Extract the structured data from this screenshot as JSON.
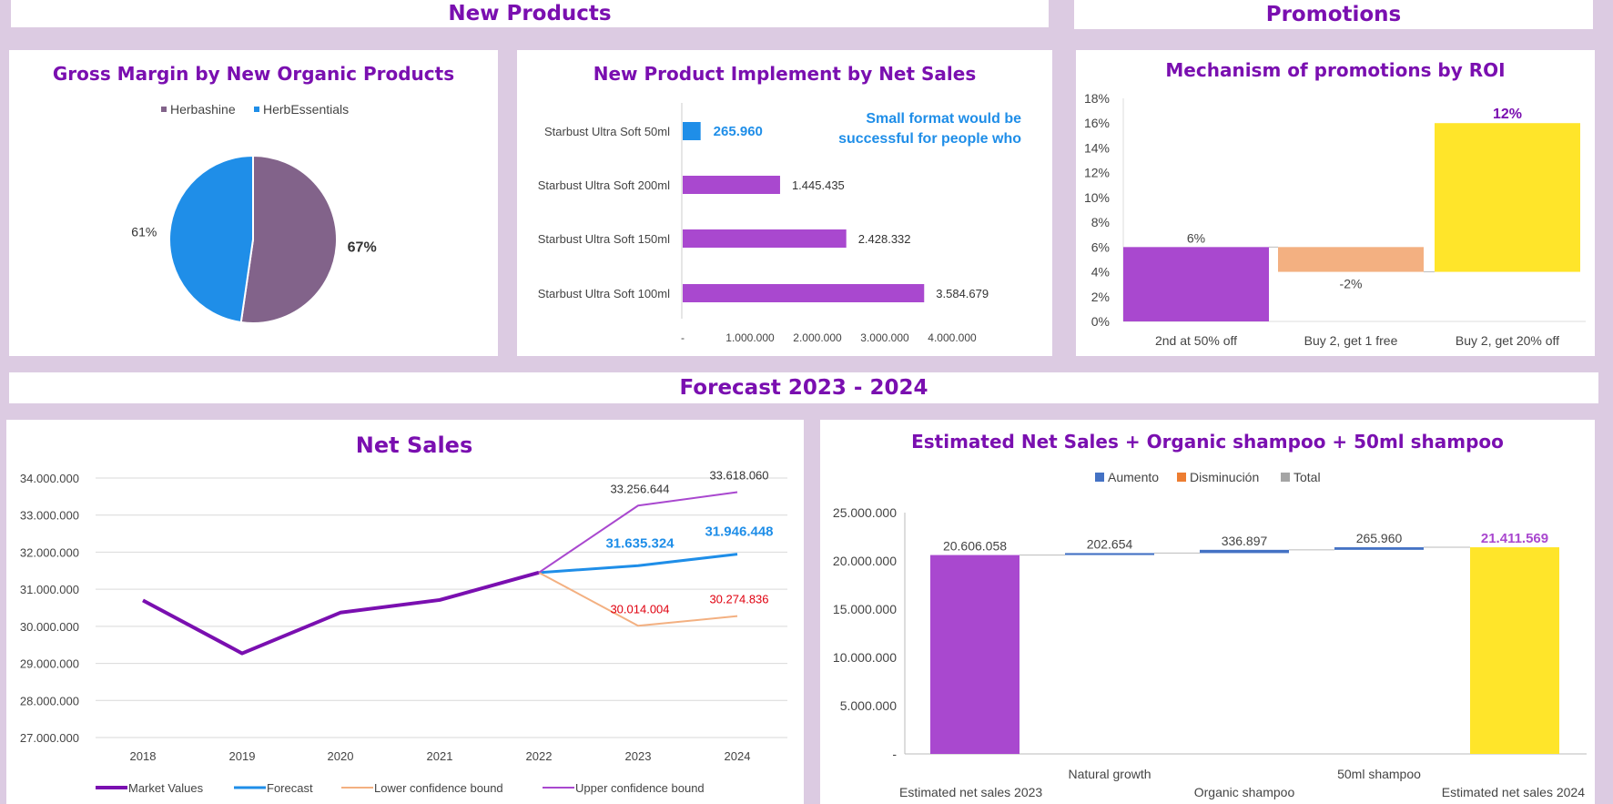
{
  "headers": {
    "new_products": "New Products",
    "promotions": "Promotions",
    "forecast": "Forecast 2023 - 2024"
  },
  "colors": {
    "purple": "#a948cf",
    "dark_purple": "#7a0fb0",
    "blue": "#1f8ee8",
    "brown": "#82638a",
    "salmon": "#f3b081",
    "yellow": "#ffe52a",
    "red": "#e0000f"
  },
  "chart_data": [
    {
      "id": "gross-margin",
      "type": "pie",
      "title": "Gross Margin by New Organic Products",
      "legend": [
        "Herbashine",
        "HerbEssentials"
      ],
      "legend_placement": "top",
      "slices": [
        {
          "name": "Herbashine",
          "label": "67%",
          "value": 52.3,
          "color": "#82638a"
        },
        {
          "name": "HerbEssentials",
          "label": "61%",
          "value": 47.7,
          "color": "#1f8ee8"
        }
      ]
    },
    {
      "id": "new-product-implement",
      "type": "bar",
      "orientation": "horizontal",
      "title": "New Product Implement by Net Sales",
      "categories": [
        "Starbust Ultra Soft 50ml",
        "Starbust Ultra Soft 200ml",
        "Starbust Ultra Soft 150ml",
        "Starbust Ultra Soft 100ml"
      ],
      "values": [
        265960,
        1445435,
        2428332,
        3584679
      ],
      "value_labels": [
        "265.960",
        "1.445.435",
        "2.428.332",
        "3.584.679"
      ],
      "xlim": [
        0,
        4000000
      ],
      "x_ticks": [
        "-",
        "1.000.000",
        "2.000.000",
        "3.000.000",
        "4.000.000"
      ],
      "annotation": [
        "Small format would be",
        "successful for people who"
      ]
    },
    {
      "id": "promotions-roi",
      "type": "bar",
      "subtype": "waterfall",
      "title": "Mechanism of promotions by ROI",
      "categories": [
        "2nd at 50% off",
        "Buy 2, get 1 free",
        "Buy 2, get 20% off"
      ],
      "values": [
        6,
        -2,
        12
      ],
      "value_labels": [
        "6%",
        "-2%",
        "12%"
      ],
      "ylim": [
        0,
        18
      ],
      "y_ticks": [
        "0%",
        "2%",
        "4%",
        "6%",
        "8%",
        "10%",
        "12%",
        "14%",
        "16%",
        "18%"
      ]
    },
    {
      "id": "net-sales",
      "type": "line",
      "title": "Net Sales",
      "x": [
        "2018",
        "2019",
        "2020",
        "2021",
        "2022",
        "2023",
        "2024"
      ],
      "ylim": [
        27000000,
        34000000
      ],
      "y_ticks": [
        "27.000.000",
        "28.000.000",
        "29.000.000",
        "30.000.000",
        "31.000.000",
        "32.000.000",
        "33.000.000",
        "34.000.000"
      ],
      "series": [
        {
          "name": "Market Values",
          "values": [
            30700000,
            29270000,
            30370000,
            30710000,
            31450000,
            null,
            null
          ]
        },
        {
          "name": "Forecast",
          "values": [
            null,
            null,
            null,
            null,
            31450000,
            31635324,
            31946448
          ],
          "labels": [
            "",
            "",
            "",
            "",
            "",
            "31.635.324",
            "31.946.448"
          ]
        },
        {
          "name": "Lower confidence bound",
          "values": [
            null,
            null,
            null,
            null,
            31450000,
            30014004,
            30274836
          ],
          "labels": [
            "",
            "",
            "",
            "",
            "",
            "30.014.004",
            "30.274.836"
          ]
        },
        {
          "name": "Upper confidence bound",
          "values": [
            null,
            null,
            null,
            null,
            31450000,
            33256644,
            33618060
          ],
          "labels": [
            "",
            "",
            "",
            "",
            "",
            "33.256.644",
            "33.618.060"
          ]
        }
      ],
      "legend_placement": "bottom"
    },
    {
      "id": "estimated-net-sales",
      "type": "bar",
      "subtype": "waterfall",
      "title": "Estimated Net Sales + Organic shampoo + 50ml shampoo",
      "legend": [
        "Aumento",
        "Disminución",
        "Total"
      ],
      "legend_placement": "top",
      "categories": [
        "Estimated net sales 2023",
        "Natural growth",
        "Organic shampoo",
        "50ml shampoo",
        "Estimated net sales 2024"
      ],
      "values": [
        20606058,
        202654,
        336897,
        265960,
        21411569
      ],
      "value_labels": [
        "20.606.058",
        "202.654",
        "336.897",
        "265.960",
        "21.411.569"
      ],
      "ylim": [
        0,
        25000000
      ],
      "y_ticks": [
        "-",
        "5.000.000",
        "10.000.000",
        "15.000.000",
        "20.000.000",
        "25.000.000"
      ]
    }
  ]
}
